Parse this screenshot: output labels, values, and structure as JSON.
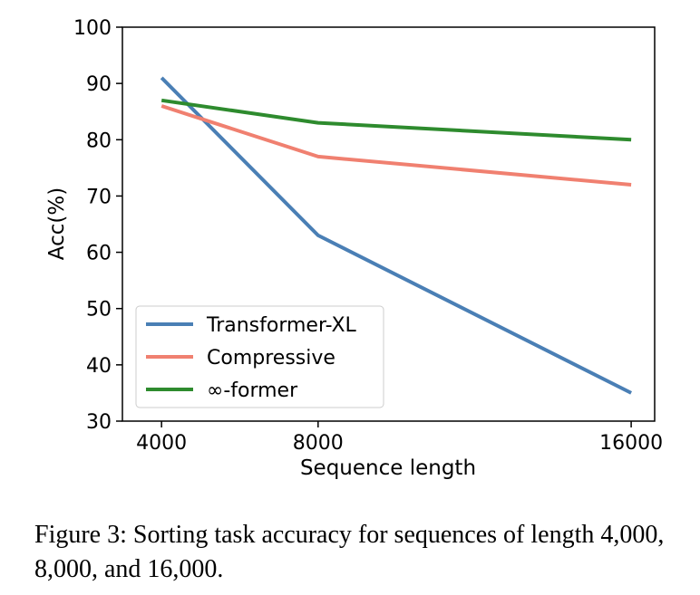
{
  "chart_data": {
    "type": "line",
    "title": "",
    "xlabel": "Sequence length",
    "ylabel": "Acc(%)",
    "x": [
      4000,
      8000,
      16000
    ],
    "xticks": [
      "4000",
      "8000",
      "16000"
    ],
    "ylim": [
      30,
      100
    ],
    "yticks": [
      "30",
      "40",
      "50",
      "60",
      "70",
      "80",
      "90",
      "100"
    ],
    "grid": false,
    "legend_position": "lower-left",
    "series": [
      {
        "name": "Transformer-XL",
        "color": "#4a7fb5",
        "values": [
          91,
          63,
          35
        ]
      },
      {
        "name": "Compressive",
        "color": "#f08070",
        "values": [
          86,
          77,
          72
        ]
      },
      {
        "name": "∞-former",
        "color": "#2e8b2e",
        "values": [
          87,
          83,
          80
        ]
      }
    ]
  },
  "caption": "Figure 3: Sorting task accuracy for sequences of length 4,000, 8,000, and 16,000."
}
